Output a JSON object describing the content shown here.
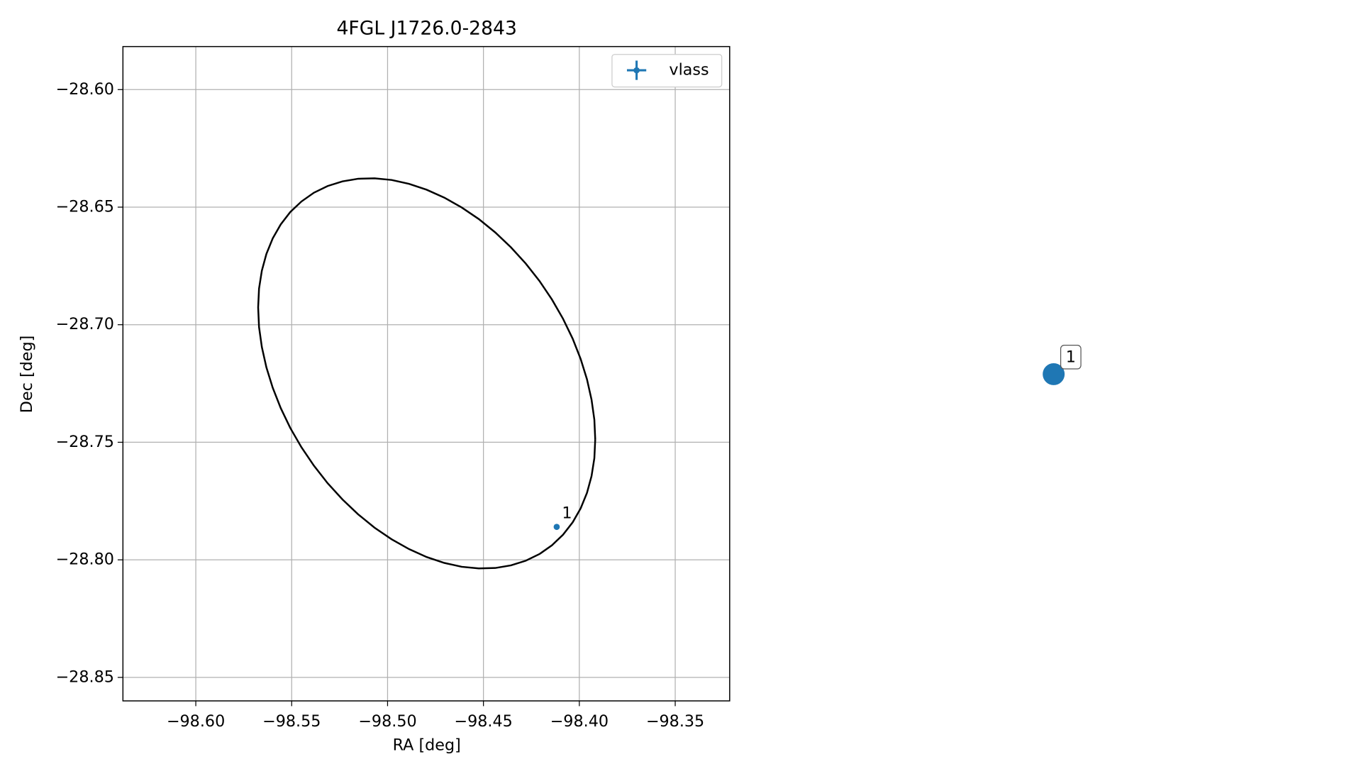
{
  "chart_data": [
    {
      "type": "scatter",
      "title": "4FGL J1726.0-2843",
      "xlabel": "RA [deg]",
      "ylabel": "Dec [deg]",
      "series": [
        {
          "name": "vlass",
          "color": "#1f77b4",
          "x": [
            -98.4118
          ],
          "values": [
            -28.786
          ],
          "point_labels": [
            "1"
          ]
        }
      ],
      "ellipse": {
        "x": -98.4796,
        "y": -28.7207,
        "x_radius": 0.0879,
        "y_radius": 0.083,
        "correlation": -0.338,
        "color": "#000000"
      },
      "xlim": [
        -98.638,
        -98.3216
      ],
      "ylim": [
        -28.86,
        -28.5817
      ],
      "xticks": [
        {
          "value": -98.6,
          "label": "−98.60"
        },
        {
          "value": -98.55,
          "label": "−98.55"
        },
        {
          "value": -98.5,
          "label": "−98.50"
        },
        {
          "value": -98.45,
          "label": "−98.45"
        },
        {
          "value": -98.4,
          "label": "−98.40"
        },
        {
          "value": -98.35,
          "label": "−98.35"
        }
      ],
      "yticks": [
        {
          "value": -28.6,
          "label": "−28.60"
        },
        {
          "value": -28.65,
          "label": "−28.65"
        },
        {
          "value": -28.7,
          "label": "−28.70"
        },
        {
          "value": -28.75,
          "label": "−28.75"
        },
        {
          "value": -28.8,
          "label": "−28.80"
        },
        {
          "value": -28.85,
          "label": "−28.85"
        }
      ],
      "grid": true,
      "legend": "upper right"
    },
    {
      "type": "graph",
      "nodes": [
        {
          "label": "1",
          "color": "#1f77b4"
        }
      ]
    }
  ]
}
